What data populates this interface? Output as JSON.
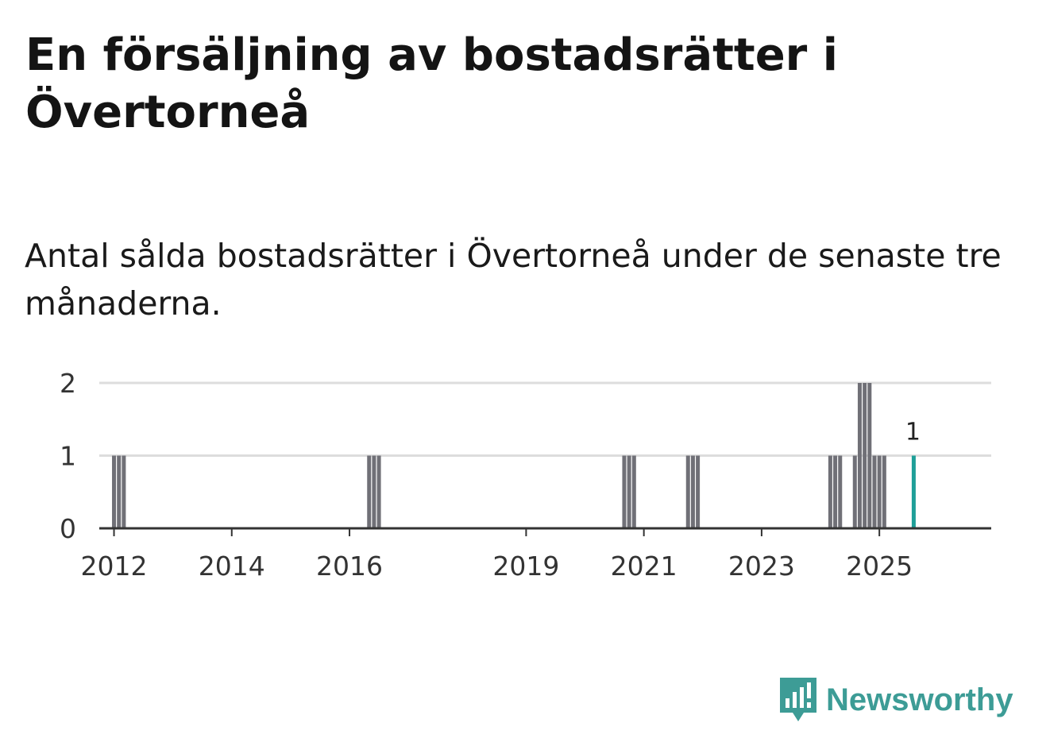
{
  "colors": {
    "bar": "#707077",
    "highlight_bar": "#1e9f98",
    "gridline": "#dddddd",
    "axis": "#333333",
    "brand": "#3d9c96"
  },
  "brand": {
    "name": "Newsworthy",
    "icon": "newsworthy-logo-icon"
  },
  "chart_data": {
    "type": "bar",
    "title": "En försäljning av bostadsrätter i Övertorneå",
    "subtitle": "Antal sålda bostadsrätter i Övertorneå under de senaste tre månaderna.",
    "xlabel": "",
    "ylabel": "",
    "x_axis": "monthly dates",
    "x_ticks": [
      "2012",
      "2014",
      "2016",
      "2019",
      "2021",
      "2023",
      "2025"
    ],
    "y_ticks": [
      "0",
      "1",
      "2"
    ],
    "ylim": [
      0,
      2
    ],
    "grid": true,
    "highlight_label": "1",
    "points": [
      {
        "date": "2012-01",
        "value": 1
      },
      {
        "date": "2012-02",
        "value": 1
      },
      {
        "date": "2012-03",
        "value": 1
      },
      {
        "date": "2016-05",
        "value": 1
      },
      {
        "date": "2016-06",
        "value": 1
      },
      {
        "date": "2016-07",
        "value": 1
      },
      {
        "date": "2020-09",
        "value": 1
      },
      {
        "date": "2020-10",
        "value": 1
      },
      {
        "date": "2020-11",
        "value": 1
      },
      {
        "date": "2021-10",
        "value": 1
      },
      {
        "date": "2021-11",
        "value": 1
      },
      {
        "date": "2021-12",
        "value": 1
      },
      {
        "date": "2024-03",
        "value": 1
      },
      {
        "date": "2024-04",
        "value": 1
      },
      {
        "date": "2024-05",
        "value": 1
      },
      {
        "date": "2024-08",
        "value": 1
      },
      {
        "date": "2024-09",
        "value": 2
      },
      {
        "date": "2024-10",
        "value": 2
      },
      {
        "date": "2024-11",
        "value": 2
      },
      {
        "date": "2024-12",
        "value": 1
      },
      {
        "date": "2025-01",
        "value": 1
      },
      {
        "date": "2025-02",
        "value": 1
      },
      {
        "date": "2025-08",
        "value": 1,
        "highlight": true
      }
    ]
  }
}
